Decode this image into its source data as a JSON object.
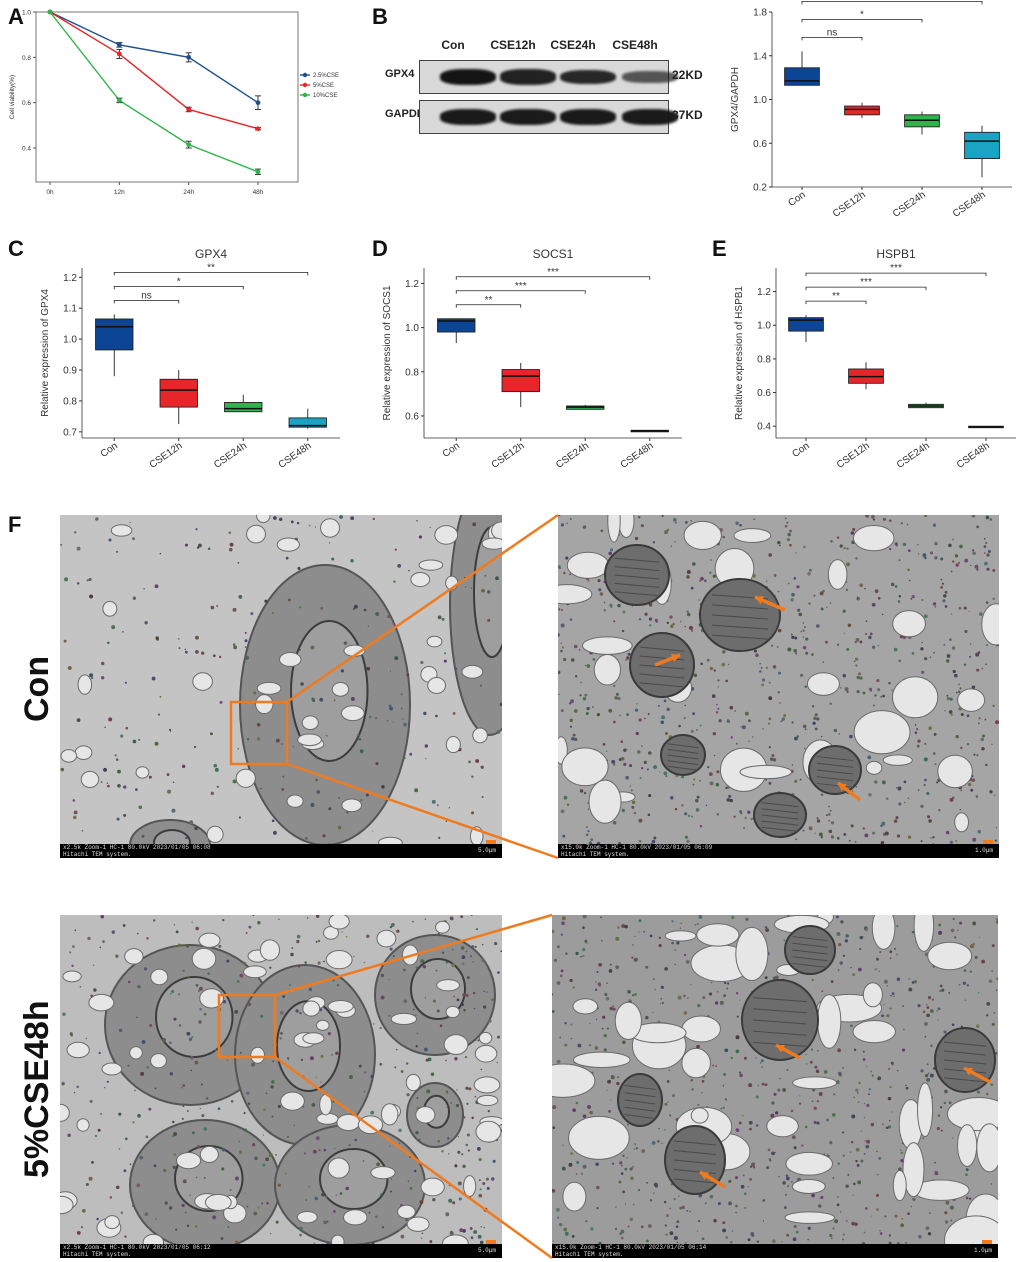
{
  "panels": {
    "A": "A",
    "B": "B",
    "C": "C",
    "D": "D",
    "E": "E",
    "F": "F"
  },
  "colors": {
    "blue": "#1f4e8c",
    "red": "#e8262a",
    "green": "#2fb34a",
    "cyan": "#1aa3c2",
    "navy": "#0d4596",
    "orange": "#f07b1f"
  },
  "chart_data": [
    {
      "id": "A",
      "type": "line",
      "title": "",
      "x": [
        "0h",
        "12h",
        "24h",
        "48h"
      ],
      "xlabel": "",
      "ylabel": "Cell viability(%)",
      "ylim": [
        0.25,
        1.0
      ],
      "yticks": [
        "0.4",
        "0.6",
        "0.8",
        "1.0"
      ],
      "legend_position": "right",
      "series": [
        {
          "name": "2.5%CSE",
          "color": "#1f4e8c",
          "values": [
            1.0,
            0.855,
            0.8,
            0.6
          ],
          "err": [
            0,
            0.01,
            0.02,
            0.03
          ]
        },
        {
          "name": "5%CSE",
          "color": "#e8262a",
          "values": [
            1.0,
            0.815,
            0.57,
            0.485
          ],
          "err": [
            0,
            0.02,
            0.01,
            0.005
          ]
        },
        {
          "name": "10%CSE",
          "color": "#2fb34a",
          "values": [
            1.0,
            0.61,
            0.415,
            0.295
          ],
          "err": [
            0,
            0.01,
            0.015,
            0.012
          ]
        }
      ]
    },
    {
      "id": "B",
      "type": "box",
      "title": "",
      "ylabel": "GPX4/GAPDH",
      "ylim": [
        0.2,
        1.8
      ],
      "yticks": [
        "0.2",
        "0.6",
        "1.0",
        "1.4",
        "1.8"
      ],
      "categories": [
        "Con",
        "CSE12h",
        "CSE24h",
        "CSE48h"
      ],
      "colors": [
        "#0d4596",
        "#e8262a",
        "#2fb34a",
        "#1aa3c2"
      ],
      "boxes": [
        {
          "min": 1.13,
          "q1": 1.13,
          "median": 1.17,
          "q3": 1.29,
          "max": 1.44
        },
        {
          "min": 0.83,
          "q1": 0.86,
          "median": 0.91,
          "q3": 0.94,
          "max": 0.97
        },
        {
          "min": 0.68,
          "q1": 0.75,
          "median": 0.81,
          "q3": 0.86,
          "max": 0.89
        },
        {
          "min": 0.29,
          "q1": 0.46,
          "median": 0.62,
          "q3": 0.7,
          "max": 0.76
        }
      ],
      "significance": [
        {
          "to": 1,
          "label": "ns"
        },
        {
          "to": 2,
          "label": "*"
        },
        {
          "to": 3,
          "label": "**"
        }
      ]
    },
    {
      "id": "C",
      "type": "box",
      "title": "GPX4",
      "ylabel": "Relative expression of GPX4",
      "ylim": [
        0.68,
        1.23
      ],
      "yticks": [
        "0.7",
        "0.8",
        "0.9",
        "1.0",
        "1.1",
        "1.2"
      ],
      "categories": [
        "Con",
        "CSE12h",
        "CSE24h",
        "CSE48h"
      ],
      "colors": [
        "#0d4596",
        "#e8262a",
        "#2fb34a",
        "#1aa3c2"
      ],
      "boxes": [
        {
          "min": 0.88,
          "q1": 0.965,
          "median": 1.04,
          "q3": 1.065,
          "max": 1.08
        },
        {
          "min": 0.725,
          "q1": 0.78,
          "median": 0.835,
          "q3": 0.87,
          "max": 0.9
        },
        {
          "min": 0.765,
          "q1": 0.765,
          "median": 0.775,
          "q3": 0.795,
          "max": 0.82
        },
        {
          "min": 0.71,
          "q1": 0.715,
          "median": 0.72,
          "q3": 0.745,
          "max": 0.775
        }
      ],
      "significance": [
        {
          "to": 1,
          "label": "ns"
        },
        {
          "to": 2,
          "label": "*"
        },
        {
          "to": 3,
          "label": "**"
        }
      ]
    },
    {
      "id": "D",
      "type": "box",
      "title": "SOCS1",
      "ylabel": "Relative expression of SOCS1",
      "ylim": [
        0.5,
        1.27
      ],
      "yticks": [
        "0.6",
        "0.8",
        "1.0",
        "1.2"
      ],
      "categories": [
        "Con",
        "CSE12h",
        "CSE24h",
        "CSE48h"
      ],
      "colors": [
        "#0d4596",
        "#e8262a",
        "#2fb34a",
        "#1aa3c2"
      ],
      "boxes": [
        {
          "min": 0.93,
          "q1": 0.98,
          "median": 1.03,
          "q3": 1.04,
          "max": 1.04
        },
        {
          "min": 0.64,
          "q1": 0.71,
          "median": 0.78,
          "q3": 0.81,
          "max": 0.84
        },
        {
          "min": 0.63,
          "q1": 0.63,
          "median": 0.64,
          "q3": 0.645,
          "max": 0.65
        },
        {
          "min": 0.528,
          "q1": 0.528,
          "median": 0.532,
          "q3": 0.535,
          "max": 0.535
        }
      ],
      "significance": [
        {
          "to": 1,
          "label": "**"
        },
        {
          "to": 2,
          "label": "***"
        },
        {
          "to": 3,
          "label": "***"
        }
      ]
    },
    {
      "id": "E",
      "type": "box",
      "title": "HSPB1",
      "ylabel": "Relative expression of HSPB1",
      "ylim": [
        0.33,
        1.34
      ],
      "yticks": [
        "0.4",
        "0.6",
        "0.8",
        "1.0",
        "1.2"
      ],
      "categories": [
        "Con",
        "CSE12h",
        "CSE24h",
        "CSE48h"
      ],
      "colors": [
        "#0d4596",
        "#e8262a",
        "#2fb34a",
        "#1aa3c2"
      ],
      "boxes": [
        {
          "min": 0.9,
          "q1": 0.965,
          "median": 1.03,
          "q3": 1.045,
          "max": 1.06
        },
        {
          "min": 0.62,
          "q1": 0.655,
          "median": 0.695,
          "q3": 0.74,
          "max": 0.78
        },
        {
          "min": 0.51,
          "q1": 0.51,
          "median": 0.52,
          "q3": 0.53,
          "max": 0.54
        },
        {
          "min": 0.395,
          "q1": 0.395,
          "median": 0.397,
          "q3": 0.4,
          "max": 0.4
        }
      ],
      "significance": [
        {
          "to": 1,
          "label": "**"
        },
        {
          "to": 2,
          "label": "***"
        },
        {
          "to": 3,
          "label": "***"
        }
      ]
    }
  ],
  "blot": {
    "columns": [
      "Con",
      "CSE12h",
      "CSE24h",
      "CSE48h"
    ],
    "rows": [
      {
        "label": "GPX4",
        "size": "22KD",
        "intensity": [
          1.0,
          0.9,
          0.85,
          0.5
        ]
      },
      {
        "label": "GAPDH",
        "size": "37KD",
        "intensity": [
          0.95,
          0.95,
          0.95,
          0.95
        ]
      }
    ]
  },
  "tem": {
    "row_labels": [
      "Con",
      "5%CSE48h"
    ],
    "images": [
      {
        "info1": "x2.5k Zoom-1 HC-1 80.0kV 2023/01/05 06:08",
        "info2": "Hitachi TEM system.",
        "scale": "5.0µm"
      },
      {
        "info1": "x15.0k Zoom-1 HC-1 80.0kV 2023/01/05 06:09",
        "info2": "Hitachi TEM system.",
        "scale": "1.0µm"
      },
      {
        "info1": "x2.5k Zoom-1 HC-1 80.0kV 2023/01/05 06:12",
        "info2": "Hitachi TEM system.",
        "scale": "5.0µm"
      },
      {
        "info1": "x15.0k Zoom-1 HC-1 80.0kV 2023/01/05 06:14",
        "info2": "Hitachi TEM system.",
        "scale": "1.0µm"
      }
    ]
  }
}
